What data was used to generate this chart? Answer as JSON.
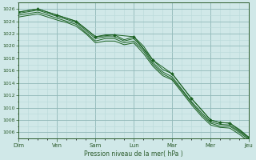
{
  "xlabel": "Pression niveau de la mer( hPa )",
  "bg_color": "#d0e8e8",
  "grid_color_minor": "#b8d8d8",
  "grid_color_major": "#90b8b8",
  "line_color": "#1a6020",
  "x_labels": [
    "Dim",
    "Ven",
    "Sam",
    "Lun",
    "Mar",
    "Mer",
    "Jeu"
  ],
  "x_ticks": [
    0,
    8,
    16,
    24,
    32,
    40,
    48
  ],
  "ylim": [
    1005.0,
    1027.0
  ],
  "yticks": [
    1006,
    1008,
    1010,
    1012,
    1014,
    1016,
    1018,
    1020,
    1022,
    1024,
    1026
  ],
  "key_x": [
    0,
    4,
    8,
    10,
    12,
    14,
    16,
    18,
    20,
    22,
    24,
    26,
    28,
    30,
    32,
    34,
    36,
    38,
    40,
    42,
    44,
    46,
    48
  ],
  "y_main": [
    1025.5,
    1026.0,
    1025.0,
    1024.5,
    1024.0,
    1022.8,
    1021.5,
    1021.8,
    1021.8,
    1021.0,
    1021.5,
    1020.0,
    1017.7,
    1016.2,
    1015.5,
    1013.5,
    1011.5,
    1009.8,
    1008.0,
    1007.6,
    1007.5,
    1006.5,
    1005.2
  ],
  "y_hi": [
    1025.3,
    1025.8,
    1024.8,
    1024.3,
    1023.8,
    1022.5,
    1021.2,
    1021.5,
    1021.5,
    1020.8,
    1021.2,
    1019.5,
    1017.3,
    1015.8,
    1015.0,
    1013.0,
    1011.0,
    1009.3,
    1007.7,
    1007.3,
    1007.2,
    1006.2,
    1005.0
  ],
  "y_lo": [
    1025.0,
    1025.5,
    1024.5,
    1024.0,
    1023.5,
    1022.2,
    1020.8,
    1021.2,
    1021.2,
    1020.5,
    1020.8,
    1019.2,
    1017.0,
    1015.5,
    1014.7,
    1012.8,
    1010.8,
    1009.0,
    1007.5,
    1007.0,
    1007.0,
    1006.0,
    1004.8
  ],
  "y_bot": [
    1024.7,
    1025.2,
    1024.2,
    1023.8,
    1023.2,
    1022.0,
    1020.5,
    1020.8,
    1020.8,
    1020.2,
    1020.5,
    1018.8,
    1016.7,
    1015.2,
    1014.5,
    1012.5,
    1010.5,
    1008.7,
    1007.2,
    1006.8,
    1006.7,
    1005.7,
    1004.5
  ],
  "marker_x": [
    0,
    4,
    8,
    12,
    16,
    20,
    24,
    28,
    32,
    36,
    40,
    42,
    44,
    48
  ],
  "marker_y": [
    1025.5,
    1026.0,
    1025.0,
    1024.0,
    1021.5,
    1021.8,
    1021.5,
    1017.7,
    1015.5,
    1011.5,
    1008.0,
    1007.6,
    1007.5,
    1005.2
  ]
}
